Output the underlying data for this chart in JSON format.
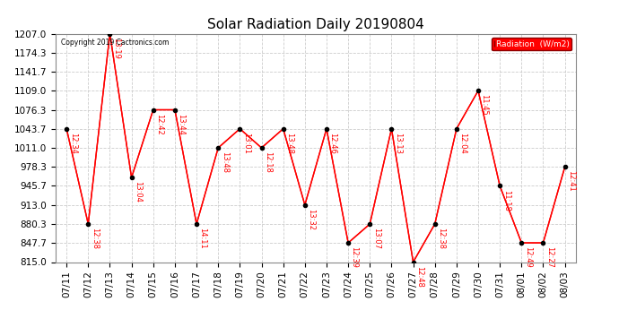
{
  "title": "Solar Radiation Daily 20190804",
  "copyright": "Copyright 2019 Cactronics.com",
  "legend_label": "Radiation  (W/m2)",
  "dates": [
    "07/11",
    "07/12",
    "07/13",
    "07/14",
    "07/15",
    "07/16",
    "07/17",
    "07/18",
    "07/19",
    "07/20",
    "07/21",
    "07/22",
    "07/23",
    "07/24",
    "07/25",
    "07/26",
    "07/27",
    "07/28",
    "07/29",
    "07/30",
    "07/31",
    "08/01",
    "08/02",
    "08/03"
  ],
  "values": [
    1043.7,
    880.3,
    1207.0,
    960.0,
    1076.3,
    1076.3,
    880.3,
    1011.0,
    1043.7,
    1011.0,
    1043.7,
    913.0,
    1043.7,
    848.0,
    880.3,
    1043.7,
    815.0,
    880.3,
    1043.7,
    1109.0,
    945.7,
    848.0,
    848.0,
    978.3
  ],
  "labels": [
    "12:34",
    "12:38",
    "13:19",
    "13:04",
    "12:42",
    "13:44",
    "14:11",
    "13:48",
    "13:01",
    "12:18",
    "13:48",
    "13:32",
    "12:46",
    "12:39",
    "13:07",
    "13:13",
    "12:48",
    "12:38",
    "12:04",
    "11:45",
    "11:18",
    "12:49",
    "12:27",
    "12:41"
  ],
  "ylim": [
    815.0,
    1207.0
  ],
  "yticks": [
    815.0,
    847.7,
    880.3,
    913.0,
    945.7,
    978.3,
    1011.0,
    1043.7,
    1076.3,
    1109.0,
    1141.7,
    1174.3,
    1207.0
  ],
  "line_color": "red",
  "marker_color": "black",
  "background_color": "white",
  "grid_color": "#cccccc",
  "title_fontsize": 11,
  "tick_fontsize": 7.5,
  "legend_bg": "red",
  "legend_fg": "white"
}
